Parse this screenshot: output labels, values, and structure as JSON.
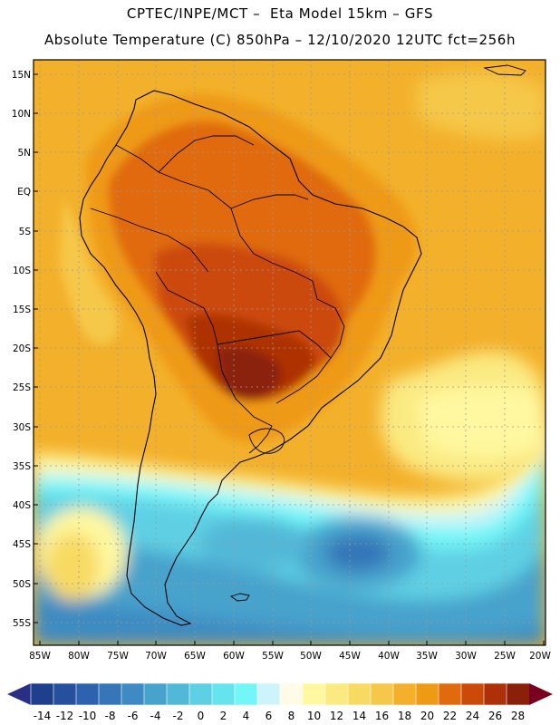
{
  "title_line1": "CPTEC/INPE/MCT –  Eta Model 15km – GFS",
  "title_line2": "Absolute Temperature (C) 850hPa – 12/10/2020 12UTC fct=256h",
  "lat_labels": [
    "15N",
    "10N",
    "5N",
    "EQ",
    "5S",
    "10S",
    "15S",
    "20S",
    "25S",
    "30S",
    "35S",
    "40S",
    "45S",
    "50S",
    "55S"
  ],
  "lon_labels": [
    "85W",
    "80W",
    "75W",
    "70W",
    "65W",
    "60W",
    "55W",
    "50W",
    "45W",
    "40W",
    "35W",
    "30W",
    "25W",
    "20W"
  ],
  "colorbar": {
    "labels": [
      "-14",
      "-12",
      "-10",
      "-8",
      "-6",
      "-4",
      "-2",
      "0",
      "2",
      "4",
      "6",
      "8",
      "10",
      "12",
      "14",
      "16",
      "18",
      "20",
      "22",
      "24",
      "26",
      "28"
    ],
    "colors": [
      "#1e3f8c",
      "#26509e",
      "#2d62ae",
      "#3576b8",
      "#3d8bc2",
      "#47a2cc",
      "#52b8d8",
      "#5ed0e4",
      "#66e4ee",
      "#72f6f8",
      "#cdf4fa",
      "#fffbe6",
      "#fff8a0",
      "#fbea82",
      "#f8da62",
      "#f6c84a",
      "#f3b02a",
      "#ef9a14",
      "#e06a0c",
      "#cc4a08",
      "#ad3006",
      "#8a200a"
    ],
    "under_color": "#2a2f86",
    "over_color": "#7a0020"
  }
}
